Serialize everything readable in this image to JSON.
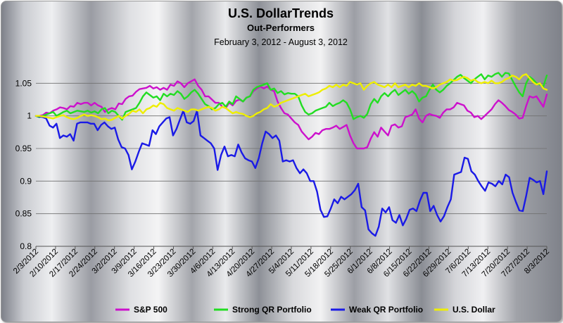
{
  "chart_data": {
    "type": "line",
    "title": "U.S. DollarTrends",
    "subtitle": "Out-Performers",
    "date_range": "February 3, 2012 - August 3, 2012",
    "xlabel": "",
    "ylabel": "",
    "ylim": [
      0.8,
      1.1
    ],
    "yticks": [
      0.8,
      0.85,
      0.9,
      0.95,
      1,
      1.05
    ],
    "ytick_labels": [
      "0.8",
      "0.85",
      "0.9",
      "0.95",
      "1",
      "1.05"
    ],
    "grid": true,
    "legend_position": "bottom",
    "x_labels": [
      "2/3/2012",
      "2/10/2012",
      "2/17/2012",
      "2/24/2012",
      "3/2/2012",
      "3/9/2012",
      "3/16/2012",
      "3/23/2012",
      "3/30/2012",
      "4/6/2012",
      "4/13/2012",
      "4/20/2012",
      "4/27/2012",
      "5/4/2012",
      "5/11/2012",
      "5/18/2012",
      "5/25/2012",
      "6/1/2012",
      "6/8/2012",
      "6/15/2012",
      "6/22/2012",
      "6/29/2012",
      "7/6/2012",
      "7/13/2012",
      "7/20/2012",
      "7/27/2012",
      "8/3/2012"
    ],
    "series": [
      {
        "name": "S&P 500",
        "color": "#cc11cc",
        "values": [
          1.0,
          1.0,
          1.001,
          1.005,
          1.004,
          1.008,
          1.01,
          1.013,
          1.012,
          1.01,
          1.015,
          1.014,
          1.02,
          1.018,
          1.02,
          1.02,
          1.016,
          1.02,
          1.016,
          1.014,
          1.006,
          1.01,
          1.012,
          1.01,
          1.019,
          1.018,
          1.026,
          1.03,
          1.031,
          1.037,
          1.041,
          1.042,
          1.043,
          1.046,
          1.042,
          1.044,
          1.04,
          1.043,
          1.04,
          1.048,
          1.046,
          1.053,
          1.05,
          1.044,
          1.05,
          1.053,
          1.056,
          1.046,
          1.04,
          1.03,
          1.03,
          1.025,
          1.02,
          1.02,
          1.014,
          1.012,
          1.02,
          1.016,
          1.023,
          1.025,
          1.022,
          1.028,
          1.03,
          1.038,
          1.042,
          1.045,
          1.042,
          1.045,
          1.04,
          1.038,
          1.022,
          1.012,
          1.004,
          1.002,
          0.996,
          0.99,
          0.986,
          0.976,
          0.97,
          0.964,
          0.968,
          0.974,
          0.972,
          0.978,
          0.98,
          0.98,
          0.982,
          0.985,
          0.98,
          0.983,
          0.986,
          0.97,
          0.958,
          0.95,
          0.95,
          0.95,
          0.952,
          0.965,
          0.975,
          0.968,
          0.982,
          0.976,
          0.97,
          0.985,
          0.987,
          0.982,
          0.984,
          0.998,
          1.0,
          1.002,
          1.01,
          0.996,
          0.99,
          1.0,
          1.003,
          1.001,
          1.0,
          0.997,
          1.005,
          1.01,
          1.01,
          1.013,
          1.02,
          1.018,
          1.016,
          1.008,
          1.005,
          0.998,
          1.0,
          0.995,
          1.0,
          1.005,
          1.01,
          1.018,
          1.024,
          1.02,
          1.015,
          1.009,
          1.006,
          1.002,
          0.996,
          0.997,
          1.015,
          1.03,
          1.028,
          1.03,
          1.022,
          1.014,
          1.033
        ]
      },
      {
        "name": "Strong QR Portfolio",
        "color": "#22dd22",
        "values": [
          1.0,
          0.998,
          1.0,
          1.002,
          1.004,
          1.006,
          1.0,
          1.003,
          1.006,
          1.008,
          1.004,
          1.006,
          1.008,
          1.007,
          1.006,
          1.008,
          1.005,
          1.007,
          1.004,
          1.01,
          1.012,
          1.004,
          1.008,
          1.006,
          1.0,
          0.994,
          1.006,
          1.008,
          1.01,
          1.012,
          1.02,
          1.03,
          1.036,
          1.032,
          1.028,
          1.03,
          1.024,
          1.034,
          1.03,
          1.034,
          1.032,
          1.038,
          1.034,
          1.026,
          1.03,
          1.036,
          1.04,
          1.034,
          1.026,
          1.018,
          1.015,
          1.01,
          1.012,
          1.018,
          1.02,
          1.014,
          1.022,
          1.018,
          1.03,
          1.026,
          1.022,
          1.028,
          1.03,
          1.04,
          1.044,
          1.046,
          1.048,
          1.05,
          1.04,
          1.042,
          1.035,
          1.038,
          1.033,
          1.035,
          1.034,
          1.034,
          1.03,
          1.016,
          1.006,
          1.002,
          1.004,
          1.008,
          1.01,
          1.012,
          1.014,
          1.02,
          1.015,
          1.018,
          1.02,
          1.024,
          1.02,
          1.01,
          0.995,
          0.998,
          1.0,
          0.997,
          1.003,
          1.018,
          1.026,
          1.02,
          1.03,
          1.035,
          1.03,
          1.036,
          1.04,
          1.032,
          1.036,
          1.04,
          1.034,
          1.038,
          1.033,
          1.022,
          1.028,
          1.03,
          1.04,
          1.048,
          1.04,
          1.036,
          1.04,
          1.046,
          1.05,
          1.055,
          1.06,
          1.063,
          1.058,
          1.054,
          1.05,
          1.056,
          1.06,
          1.064,
          1.056,
          1.062,
          1.06,
          1.064,
          1.066,
          1.06,
          1.066,
          1.065,
          1.055,
          1.045,
          1.036,
          1.03,
          1.05,
          1.06,
          1.056,
          1.05,
          1.048,
          1.045,
          1.062
        ]
      },
      {
        "name": "Weak QR Portfolio",
        "color": "#1a1ae6",
        "values": [
          1.0,
          0.999,
          0.998,
          0.996,
          0.985,
          0.982,
          0.988,
          0.966,
          0.97,
          0.968,
          0.972,
          0.962,
          0.988,
          0.99,
          0.99,
          0.99,
          0.988,
          0.988,
          0.978,
          0.986,
          0.99,
          0.984,
          0.98,
          0.982,
          0.964,
          0.952,
          0.95,
          0.94,
          0.918,
          0.93,
          0.945,
          0.958,
          0.956,
          0.954,
          0.978,
          0.972,
          0.984,
          0.99,
          0.996,
          0.998,
          0.97,
          0.98,
          0.994,
          1.008,
          0.99,
          0.988,
          0.992,
          1.008,
          0.97,
          0.966,
          0.962,
          0.958,
          0.95,
          0.917,
          0.94,
          0.953,
          0.938,
          0.94,
          0.938,
          0.956,
          0.944,
          0.935,
          0.932,
          0.93,
          0.92,
          0.935,
          0.958,
          0.976,
          0.972,
          0.966,
          0.97,
          0.962,
          0.93,
          0.932,
          0.93,
          0.932,
          0.92,
          0.912,
          0.918,
          0.912,
          0.9,
          0.9,
          0.884,
          0.856,
          0.845,
          0.846,
          0.858,
          0.872,
          0.866,
          0.876,
          0.872,
          0.876,
          0.88,
          0.886,
          0.896,
          0.86,
          0.855,
          0.826,
          0.82,
          0.816,
          0.83,
          0.858,
          0.852,
          0.86,
          0.84,
          0.836,
          0.848,
          0.832,
          0.842,
          0.856,
          0.858,
          0.854,
          0.87,
          0.882,
          0.882,
          0.854,
          0.862,
          0.848,
          0.838,
          0.846,
          0.86,
          0.872,
          0.91,
          0.912,
          0.914,
          0.936,
          0.934,
          0.915,
          0.91,
          0.9,
          0.892,
          0.885,
          0.898,
          0.896,
          0.892,
          0.9,
          0.895,
          0.91,
          0.906,
          0.882,
          0.868,
          0.855,
          0.854,
          0.878,
          0.905,
          0.902,
          0.898,
          0.9,
          0.88,
          0.915
        ]
      },
      {
        "name": "U.S. Dollar",
        "color": "#eeee00",
        "values": [
          1.0,
          1.0,
          0.999,
          0.998,
          0.997,
          0.996,
          0.998,
          1.0,
          1.001,
          0.998,
          0.996,
          0.995,
          0.997,
          1.0,
          1.002,
          1.0,
          1.001,
          1.0,
          0.998,
          0.995,
          0.996,
          0.993,
          0.994,
          0.997,
          1.0,
          0.996,
          1.0,
          1.003,
          1.008,
          1.006,
          1.01,
          1.004,
          1.01,
          1.012,
          1.016,
          1.014,
          1.02,
          1.018,
          1.012,
          1.01,
          1.008,
          1.012,
          1.01,
          1.008,
          1.006,
          1.01,
          1.01,
          1.008,
          1.01,
          1.012,
          1.014,
          1.012,
          1.008,
          1.01,
          1.014,
          1.012,
          1.008,
          1.004,
          1.006,
          1.004,
          1.003,
          1.0,
          0.998,
          1.0,
          1.004,
          1.006,
          1.01,
          1.012,
          1.018,
          1.014,
          1.016,
          1.02,
          1.022,
          1.024,
          1.026,
          1.028,
          1.03,
          1.032,
          1.034,
          1.03,
          1.032,
          1.034,
          1.036,
          1.04,
          1.042,
          1.046,
          1.044,
          1.048,
          1.044,
          1.048,
          1.046,
          1.052,
          1.05,
          1.048,
          1.05,
          1.04,
          1.046,
          1.05,
          1.052,
          1.048,
          1.046,
          1.044,
          1.048,
          1.044,
          1.05,
          1.044,
          1.046,
          1.048,
          1.044,
          1.048,
          1.046,
          1.05,
          1.046,
          1.046,
          1.044,
          1.042,
          1.044,
          1.048,
          1.05,
          1.052,
          1.056,
          1.054,
          1.055,
          1.058,
          1.06,
          1.058,
          1.054,
          1.056,
          1.052,
          1.05,
          1.052,
          1.05,
          1.054,
          1.05,
          1.05,
          1.052,
          1.056,
          1.058,
          1.062,
          1.06,
          1.056,
          1.062,
          1.064,
          1.058,
          1.052,
          1.048,
          1.05,
          1.042,
          1.04
        ]
      }
    ]
  }
}
